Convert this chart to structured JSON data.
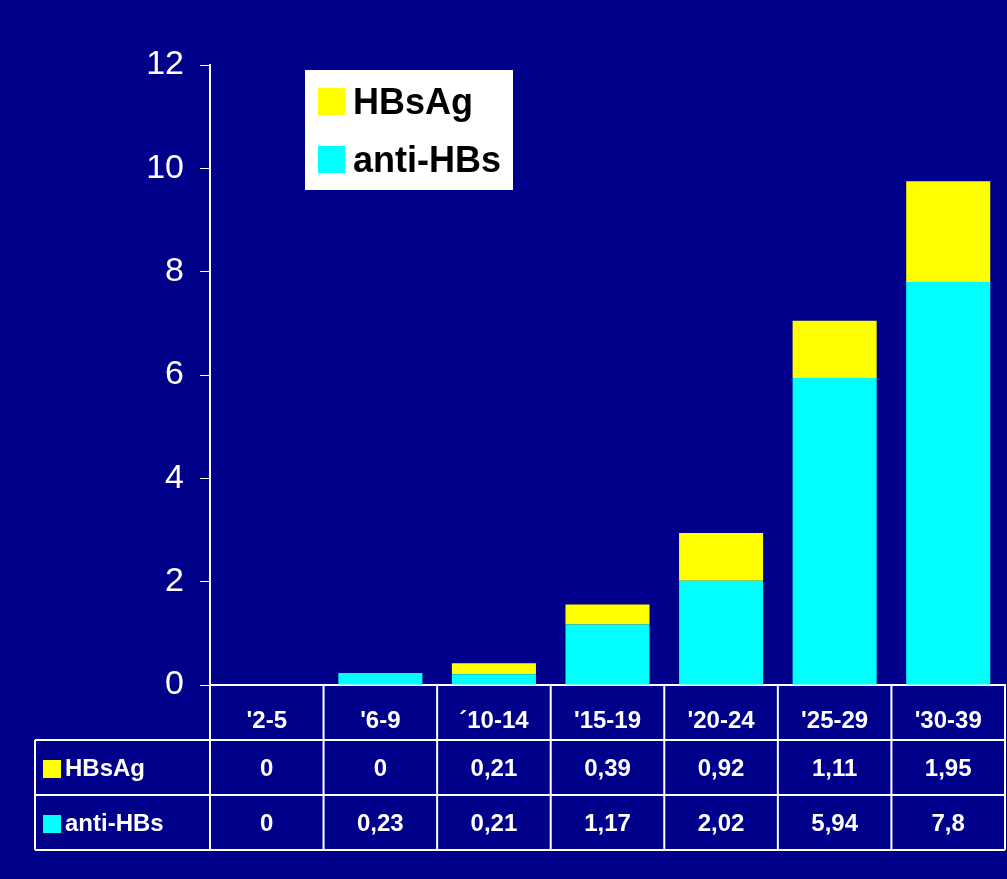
{
  "chart_data": {
    "type": "bar",
    "stacked": true,
    "categories": [
      "'2-5",
      "'6-9",
      "´10-14",
      "'15-19",
      "'20-24",
      "'25-29",
      "'30-39"
    ],
    "series": [
      {
        "name": "anti-HBs",
        "color": "#00ffff",
        "values": [
          0,
          0.23,
          0.21,
          1.17,
          2.02,
          5.94,
          7.8
        ],
        "value_labels": [
          "0",
          "0,23",
          "0,21",
          "1,17",
          "2,02",
          "5,94",
          "7,8"
        ]
      },
      {
        "name": "HBsAg",
        "color": "#ffff00",
        "values": [
          0,
          0,
          0.21,
          0.39,
          0.92,
          1.11,
          1.95
        ],
        "value_labels": [
          "0",
          "0",
          "0,21",
          "0,39",
          "0,92",
          "1,11",
          "1,95"
        ]
      }
    ],
    "ylim": [
      0,
      12
    ],
    "yticks": [
      0,
      2,
      4,
      6,
      8,
      10,
      12
    ],
    "grid": false,
    "legend": "top left"
  }
}
